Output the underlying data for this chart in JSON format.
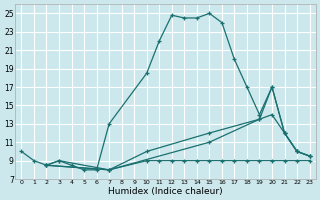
{
  "xlabel": "Humidex (Indice chaleur)",
  "bg_color": "#cce8ec",
  "grid_color": "#ffffff",
  "line_color": "#1a7070",
  "xlim": [
    0,
    23
  ],
  "ylim": [
    7,
    26
  ],
  "xticks": [
    0,
    1,
    2,
    3,
    4,
    5,
    6,
    7,
    8,
    9,
    10,
    11,
    12,
    13,
    14,
    15,
    16,
    17,
    18,
    19,
    20,
    21,
    22,
    23
  ],
  "yticks": [
    7,
    9,
    11,
    13,
    15,
    17,
    19,
    21,
    23,
    25
  ],
  "line1_x": [
    0,
    1,
    2,
    3,
    4,
    5,
    6,
    7,
    10,
    11,
    12,
    13,
    14,
    15,
    16,
    17,
    18,
    19,
    20,
    21,
    22,
    23
  ],
  "line1_y": [
    10,
    9,
    8.5,
    9,
    8.5,
    8,
    8,
    13,
    18.5,
    22,
    24.8,
    24.5,
    24.5,
    25,
    24,
    20,
    17,
    14,
    17,
    12,
    10,
    9.5
  ],
  "line2_x": [
    2,
    3,
    7,
    10,
    11,
    12,
    13,
    14,
    15,
    16,
    17,
    18,
    19,
    20,
    21,
    22,
    23
  ],
  "line2_y": [
    8.5,
    9,
    8,
    9,
    9,
    9,
    9,
    9,
    9,
    9,
    9,
    9,
    9,
    9,
    9,
    9,
    9
  ],
  "line3_x": [
    2,
    7,
    15,
    19,
    20,
    21,
    22,
    23
  ],
  "line3_y": [
    8.5,
    8,
    11,
    13.5,
    17,
    12,
    10,
    9.5
  ],
  "line4_x": [
    2,
    7,
    10,
    15,
    19,
    20,
    21,
    22,
    23
  ],
  "line4_y": [
    8.5,
    8,
    10,
    12,
    13.5,
    14,
    12,
    10,
    9.5
  ]
}
